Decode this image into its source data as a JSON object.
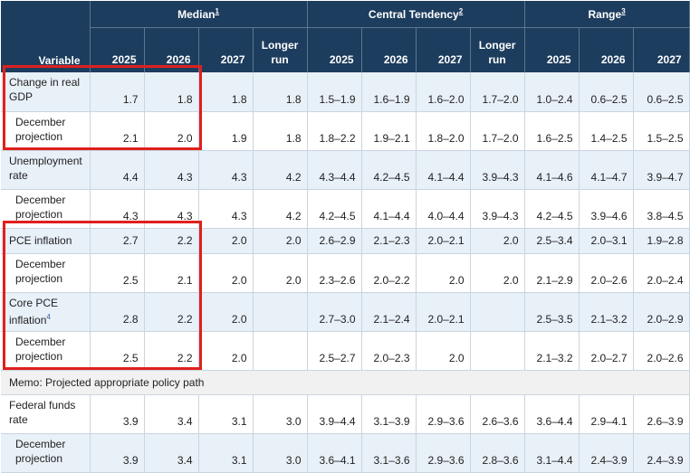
{
  "table": {
    "groups": [
      {
        "label": "Median",
        "note": "1"
      },
      {
        "label": "Central Tendency",
        "note": "2"
      },
      {
        "label": "Range",
        "note": "3"
      }
    ],
    "variable_header": "Variable",
    "cols": [
      "2025",
      "2026",
      "2027",
      "Longer run",
      "2025",
      "2026",
      "2027",
      "Longer run",
      "2025",
      "2026",
      "2027"
    ],
    "rows": [
      {
        "label": "Change in real GDP",
        "note": "",
        "indent": false,
        "shade": true,
        "cells": [
          "1.7",
          "1.8",
          "1.8",
          "1.8",
          "1.5–1.9",
          "1.6–1.9",
          "1.6–2.0",
          "1.7–2.0",
          "1.0–2.4",
          "0.6–2.5",
          "0.6–2.5"
        ]
      },
      {
        "label": "December projection",
        "note": "",
        "indent": true,
        "shade": false,
        "cells": [
          "2.1",
          "2.0",
          "1.9",
          "1.8",
          "1.8–2.2",
          "1.9–2.1",
          "1.8–2.0",
          "1.7–2.0",
          "1.6–2.5",
          "1.4–2.5",
          "1.5–2.5"
        ]
      },
      {
        "label": "Unemployment rate",
        "note": "",
        "indent": false,
        "shade": true,
        "cells": [
          "4.4",
          "4.3",
          "4.3",
          "4.2",
          "4.3–4.4",
          "4.2–4.5",
          "4.1–4.4",
          "3.9–4.3",
          "4.1–4.6",
          "4.1–4.7",
          "3.9–4.7"
        ]
      },
      {
        "label": "December projection",
        "note": "",
        "indent": true,
        "shade": false,
        "cells": [
          "4.3",
          "4.3",
          "4.3",
          "4.2",
          "4.2–4.5",
          "4.1–4.4",
          "4.0–4.4",
          "3.9–4.3",
          "4.2–4.5",
          "3.9–4.6",
          "3.8–4.5"
        ]
      },
      {
        "label": "PCE inflation",
        "note": "",
        "indent": false,
        "shade": true,
        "cells": [
          "2.7",
          "2.2",
          "2.0",
          "2.0",
          "2.6–2.9",
          "2.1–2.3",
          "2.0–2.1",
          "2.0",
          "2.5–3.4",
          "2.0–3.1",
          "1.9–2.8"
        ]
      },
      {
        "label": "December projection",
        "note": "",
        "indent": true,
        "shade": false,
        "cells": [
          "2.5",
          "2.1",
          "2.0",
          "2.0",
          "2.3–2.6",
          "2.0–2.2",
          "2.0",
          "2.0",
          "2.1–2.9",
          "2.0–2.6",
          "2.0–2.4"
        ]
      },
      {
        "label": "Core PCE inflation",
        "note": "4",
        "indent": false,
        "shade": true,
        "cells": [
          "2.8",
          "2.2",
          "2.0",
          "",
          "2.7–3.0",
          "2.1–2.4",
          "2.0–2.1",
          "",
          "2.5–3.5",
          "2.1–3.2",
          "2.0–2.9"
        ]
      },
      {
        "label": "December projection",
        "note": "",
        "indent": true,
        "shade": false,
        "cells": [
          "2.5",
          "2.2",
          "2.0",
          "",
          "2.5–2.7",
          "2.0–2.3",
          "2.0",
          "",
          "2.1–3.2",
          "2.0–2.7",
          "2.0–2.6"
        ]
      },
      {
        "memo": "Memo: Projected appropriate policy path"
      },
      {
        "label": "Federal funds rate",
        "note": "",
        "indent": false,
        "shade": false,
        "cells": [
          "3.9",
          "3.4",
          "3.1",
          "3.0",
          "3.9–4.4",
          "3.1–3.9",
          "2.9–3.6",
          "2.6–3.6",
          "3.6–4.4",
          "2.9–4.1",
          "2.6–3.9"
        ]
      },
      {
        "label": "December projection",
        "note": "",
        "indent": true,
        "shade": true,
        "cells": [
          "3.9",
          "3.4",
          "3.1",
          "3.0",
          "3.6–4.1",
          "3.1–3.6",
          "2.9–3.6",
          "2.8–3.6",
          "3.1–4.4",
          "2.4–3.9",
          "2.4–3.9"
        ]
      }
    ]
  },
  "colors": {
    "header_bg": "#1d3d5e",
    "row_shade": "#e8f0f8",
    "highlight": "#e0201d"
  }
}
